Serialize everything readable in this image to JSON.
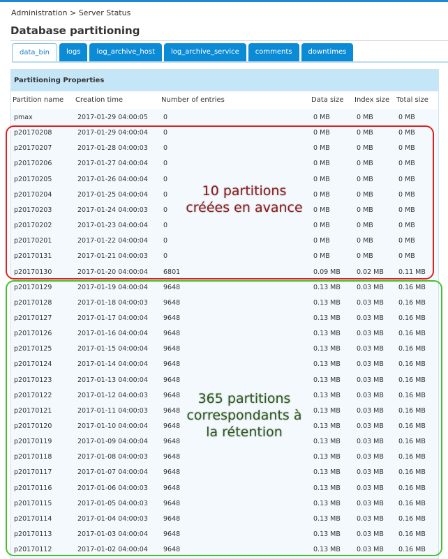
{
  "breadcrumb": "Administration > Server Status",
  "page_title": "Database partitioning",
  "tabs": [
    "data_bin",
    "logs",
    "log_archive_host",
    "log_archive_service",
    "comments",
    "downtimes"
  ],
  "active_tab": "data_bin",
  "section_title": "Partitioning Properties",
  "columns": [
    "Partition name",
    "Creation time",
    "Number of entries",
    "Data size",
    "Index size",
    "Total size"
  ],
  "rows": [
    [
      "pmax",
      "2017-01-29 04:00:05",
      "0",
      "0 MB",
      "0 MB",
      "0 MB"
    ],
    [
      "p20170208",
      "2017-01-29 04:00:04",
      "0",
      "0 MB",
      "0 MB",
      "0 MB"
    ],
    [
      "p20170207",
      "2017-01-28 04:00:03",
      "0",
      "0 MB",
      "0 MB",
      "0 MB"
    ],
    [
      "p20170206",
      "2017-01-27 04:00:04",
      "0",
      "0 MB",
      "0 MB",
      "0 MB"
    ],
    [
      "p20170205",
      "2017-01-26 04:00:04",
      "0",
      "0 MB",
      "0 MB",
      "0 MB"
    ],
    [
      "p20170204",
      "2017-01-25 04:00:04",
      "0",
      "0 MB",
      "0 MB",
      "0 MB"
    ],
    [
      "p20170203",
      "2017-01-24 04:00:03",
      "0",
      "0 MB",
      "0 MB",
      "0 MB"
    ],
    [
      "p20170202",
      "2017-01-23 04:00:04",
      "0",
      "0 MB",
      "0 MB",
      "0 MB"
    ],
    [
      "p20170201",
      "2017-01-22 04:00:04",
      "0",
      "0 MB",
      "0 MB",
      "0 MB"
    ],
    [
      "p20170131",
      "2017-01-21 04:00:03",
      "0",
      "0 MB",
      "0 MB",
      "0 MB"
    ],
    [
      "p20170130",
      "2017-01-20 04:00:04",
      "6801",
      "0.09 MB",
      "0.02 MB",
      "0.11 MB"
    ],
    [
      "p20170129",
      "2017-01-19 04:00:04",
      "9648",
      "0.13 MB",
      "0.03 MB",
      "0.16 MB"
    ],
    [
      "p20170128",
      "2017-01-18 04:00:03",
      "9648",
      "0.13 MB",
      "0.03 MB",
      "0.16 MB"
    ],
    [
      "p20170127",
      "2017-01-17 04:00:04",
      "9648",
      "0.13 MB",
      "0.03 MB",
      "0.16 MB"
    ],
    [
      "p20170126",
      "2017-01-16 04:00:04",
      "9648",
      "0.13 MB",
      "0.03 MB",
      "0.16 MB"
    ],
    [
      "p20170125",
      "2017-01-15 04:00:04",
      "9648",
      "0.13 MB",
      "0.03 MB",
      "0.16 MB"
    ],
    [
      "p20170124",
      "2017-01-14 04:00:04",
      "9648",
      "0.13 MB",
      "0.03 MB",
      "0.16 MB"
    ],
    [
      "p20170123",
      "2017-01-13 04:00:04",
      "9648",
      "0.13 MB",
      "0.03 MB",
      "0.16 MB"
    ],
    [
      "p20170122",
      "2017-01-12 04:00:03",
      "9648",
      "0.13 MB",
      "0.03 MB",
      "0.16 MB"
    ],
    [
      "p20170121",
      "2017-01-11 04:00:03",
      "9648",
      "0.13 MB",
      "0.03 MB",
      "0.16 MB"
    ],
    [
      "p20170120",
      "2017-01-10 04:00:04",
      "9648",
      "0.13 MB",
      "0.03 MB",
      "0.16 MB"
    ],
    [
      "p20170119",
      "2017-01-09 04:00:04",
      "9648",
      "0.13 MB",
      "0.03 MB",
      "0.16 MB"
    ],
    [
      "p20170118",
      "2017-01-08 04:00:03",
      "9648",
      "0.13 MB",
      "0.03 MB",
      "0.16 MB"
    ],
    [
      "p20170117",
      "2017-01-07 04:00:04",
      "9648",
      "0.13 MB",
      "0.03 MB",
      "0.16 MB"
    ],
    [
      "p20170116",
      "2017-01-06 04:00:03",
      "9648",
      "0.13 MB",
      "0.03 MB",
      "0.16 MB"
    ],
    [
      "p20170115",
      "2017-01-05 04:00:03",
      "9648",
      "0.13 MB",
      "0.03 MB",
      "0.16 MB"
    ],
    [
      "p20170114",
      "2017-01-04 04:00:03",
      "9648",
      "0.13 MB",
      "0.03 MB",
      "0.16 MB"
    ],
    [
      "p20170113",
      "2017-01-03 04:00:04",
      "9648",
      "0.13 MB",
      "0.03 MB",
      "0.16 MB"
    ],
    [
      "p20170112",
      "2017-01-02 04:00:04",
      "9648",
      "0.13 MB",
      "0.03 MB",
      "0.16 MB"
    ]
  ],
  "annotations": {
    "advance": {
      "text": "10 partitions créées en avance",
      "color": "#8b1a1a",
      "border": "#e02020"
    },
    "retention": {
      "text": "365 partitions correspondants à la rétention",
      "color": "#2a5a1a",
      "border": "#44c22a"
    }
  }
}
